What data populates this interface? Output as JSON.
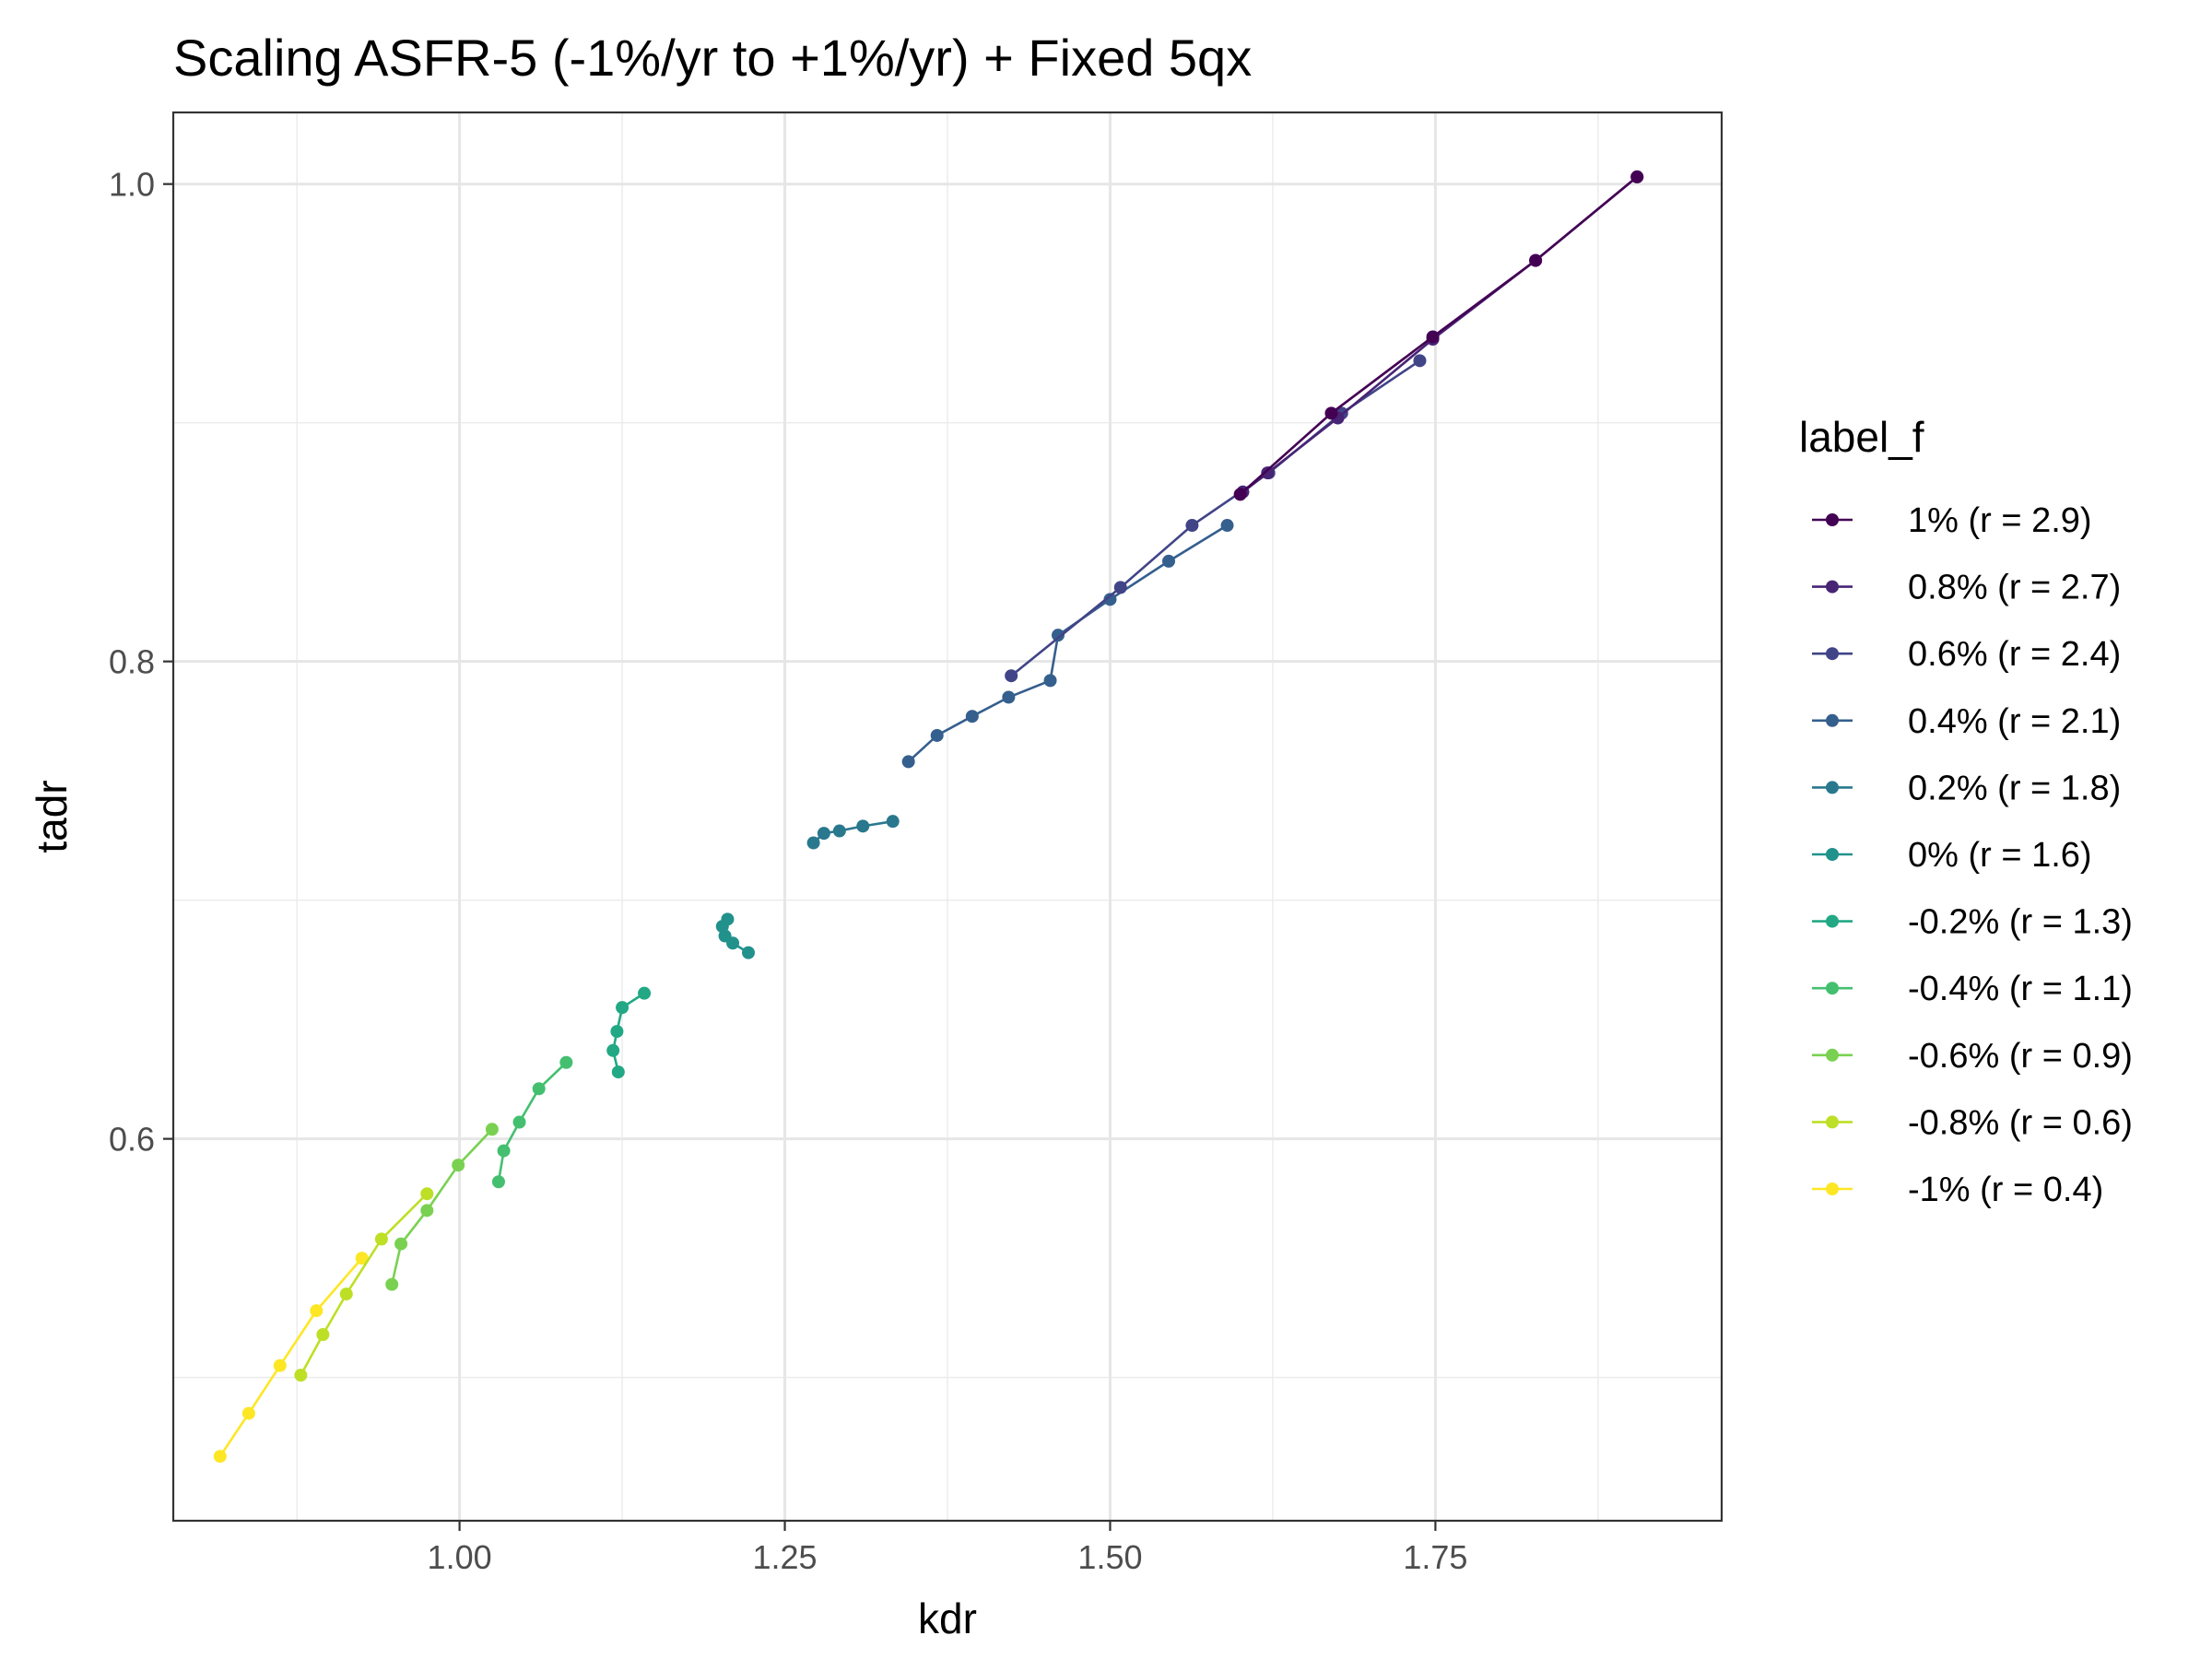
{
  "chart_data": {
    "type": "line",
    "title": "Scaling ASFR-5 (-1%/yr to +1%/yr) + Fixed 5qx",
    "xlabel": "kdr",
    "ylabel": "tadr",
    "xlim": [
      0.78,
      1.97
    ],
    "ylim": [
      0.44,
      1.03
    ],
    "x_ticks": [
      1.0,
      1.25,
      1.5,
      1.75
    ],
    "x_tick_labels": [
      "1.00",
      "1.25",
      "1.50",
      "1.75"
    ],
    "y_ticks": [
      0.6,
      0.8,
      1.0
    ],
    "y_tick_labels": [
      "0.6",
      "0.8",
      "1.0"
    ],
    "grid": true,
    "legend_title": "label_f",
    "legend_position": "right",
    "series": [
      {
        "name": "1% (r = 2.9)",
        "color": "#440154",
        "points": [
          [
            1.905,
            1.003
          ],
          [
            1.827,
            0.968
          ],
          [
            1.748,
            0.936
          ],
          [
            1.67,
            0.904
          ],
          [
            1.6,
            0.87
          ]
        ]
      },
      {
        "name": "0.8% (r = 2.7)",
        "color": "#482475",
        "points": [
          [
            1.905,
            1.003
          ],
          [
            1.827,
            0.968
          ],
          [
            1.748,
            0.935
          ],
          [
            1.675,
            0.902
          ],
          [
            1.621,
            0.879
          ],
          [
            1.602,
            0.871
          ]
        ]
      },
      {
        "name": "0.6% (r = 2.4)",
        "color": "#414487",
        "points": [
          [
            1.738,
            0.926
          ],
          [
            1.678,
            0.904
          ],
          [
            1.622,
            0.879
          ],
          [
            1.563,
            0.857
          ],
          [
            1.508,
            0.831
          ],
          [
            1.424,
            0.794
          ]
        ]
      },
      {
        "name": "0.4% (r = 2.1)",
        "color": "#355f8d",
        "points": [
          [
            1.59,
            0.857
          ],
          [
            1.545,
            0.842
          ],
          [
            1.5,
            0.826
          ],
          [
            1.46,
            0.811
          ],
          [
            1.454,
            0.792
          ],
          [
            1.422,
            0.785
          ],
          [
            1.394,
            0.777
          ],
          [
            1.367,
            0.769
          ],
          [
            1.345,
            0.758
          ]
        ]
      },
      {
        "name": "0.2% (r = 1.8)",
        "color": "#2a788e",
        "points": [
          [
            1.333,
            0.733
          ],
          [
            1.31,
            0.731
          ],
          [
            1.292,
            0.729
          ],
          [
            1.28,
            0.728
          ],
          [
            1.272,
            0.724
          ]
        ]
      },
      {
        "name": "0% (r = 1.6)",
        "color": "#21918c",
        "points": [
          [
            1.222,
            0.678
          ],
          [
            1.21,
            0.682
          ],
          [
            1.204,
            0.685
          ],
          [
            1.202,
            0.689
          ],
          [
            1.206,
            0.692
          ]
        ]
      },
      {
        "name": "-0.2% (r = 1.3)",
        "color": "#22a884",
        "points": [
          [
            1.142,
            0.661
          ],
          [
            1.125,
            0.655
          ],
          [
            1.121,
            0.645
          ],
          [
            1.118,
            0.637
          ],
          [
            1.122,
            0.628
          ]
        ]
      },
      {
        "name": "-0.4% (r = 1.1)",
        "color": "#44bf70",
        "points": [
          [
            1.082,
            0.632
          ],
          [
            1.061,
            0.621
          ],
          [
            1.046,
            0.607
          ],
          [
            1.034,
            0.595
          ],
          [
            1.03,
            0.582
          ]
        ]
      },
      {
        "name": "-0.6% (r = 0.9)",
        "color": "#7ad151",
        "points": [
          [
            1.025,
            0.604
          ],
          [
            0.999,
            0.589
          ],
          [
            0.975,
            0.57
          ],
          [
            0.955,
            0.556
          ],
          [
            0.948,
            0.539
          ]
        ]
      },
      {
        "name": "-0.8% (r = 0.6)",
        "color": "#bddf26",
        "points": [
          [
            0.975,
            0.577
          ],
          [
            0.94,
            0.558
          ],
          [
            0.913,
            0.535
          ],
          [
            0.895,
            0.518
          ],
          [
            0.878,
            0.501
          ]
        ]
      },
      {
        "name": "-1% (r = 0.4)",
        "color": "#fde725",
        "points": [
          [
            0.925,
            0.55
          ],
          [
            0.89,
            0.528
          ],
          [
            0.862,
            0.505
          ],
          [
            0.838,
            0.485
          ],
          [
            0.816,
            0.467
          ]
        ]
      }
    ]
  }
}
